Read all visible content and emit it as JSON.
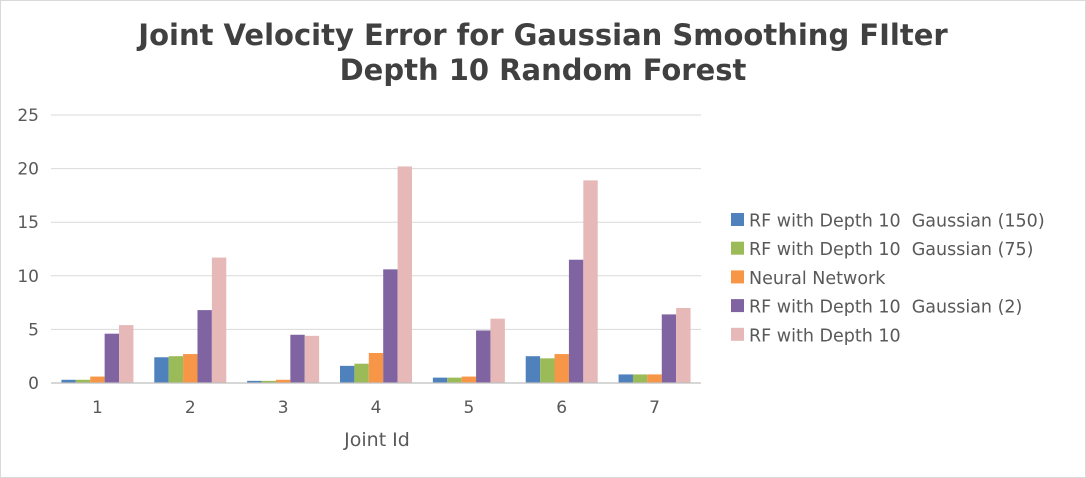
{
  "chart_data": {
    "type": "bar",
    "title": [
      "Joint Velocity Error for Gaussian Smoothing FIlter",
      "Depth 10 Random Forest"
    ],
    "xlabel": "Joint Id",
    "ylabel": "",
    "categories": [
      "1",
      "2",
      "3",
      "4",
      "5",
      "6",
      "7"
    ],
    "ylim": [
      0,
      25
    ],
    "yticks": [
      0,
      5,
      10,
      15,
      20,
      25
    ],
    "grid": "horizontal",
    "legend_position": "right",
    "series": [
      {
        "name": "RF with Depth 10  Gaussian (150)",
        "color": "#4f81bd",
        "values": [
          0.3,
          2.4,
          0.2,
          1.6,
          0.5,
          2.5,
          0.8
        ]
      },
      {
        "name": "RF with Depth 10  Gaussian (75)",
        "color": "#9bbb59",
        "values": [
          0.3,
          2.5,
          0.2,
          1.8,
          0.5,
          2.3,
          0.8
        ]
      },
      {
        "name": "Neural Network",
        "color": "#f79646",
        "values": [
          0.6,
          2.7,
          0.3,
          2.8,
          0.6,
          2.7,
          0.8
        ]
      },
      {
        "name": "RF with Depth 10  Gaussian (2)",
        "color": "#8064a2",
        "values": [
          4.6,
          6.8,
          4.5,
          10.6,
          4.9,
          11.5,
          6.4
        ]
      },
      {
        "name": "RF with Depth 10",
        "color": "#e6b9b8",
        "values": [
          5.4,
          11.7,
          4.4,
          20.2,
          6.0,
          18.9,
          7.0
        ]
      }
    ]
  }
}
